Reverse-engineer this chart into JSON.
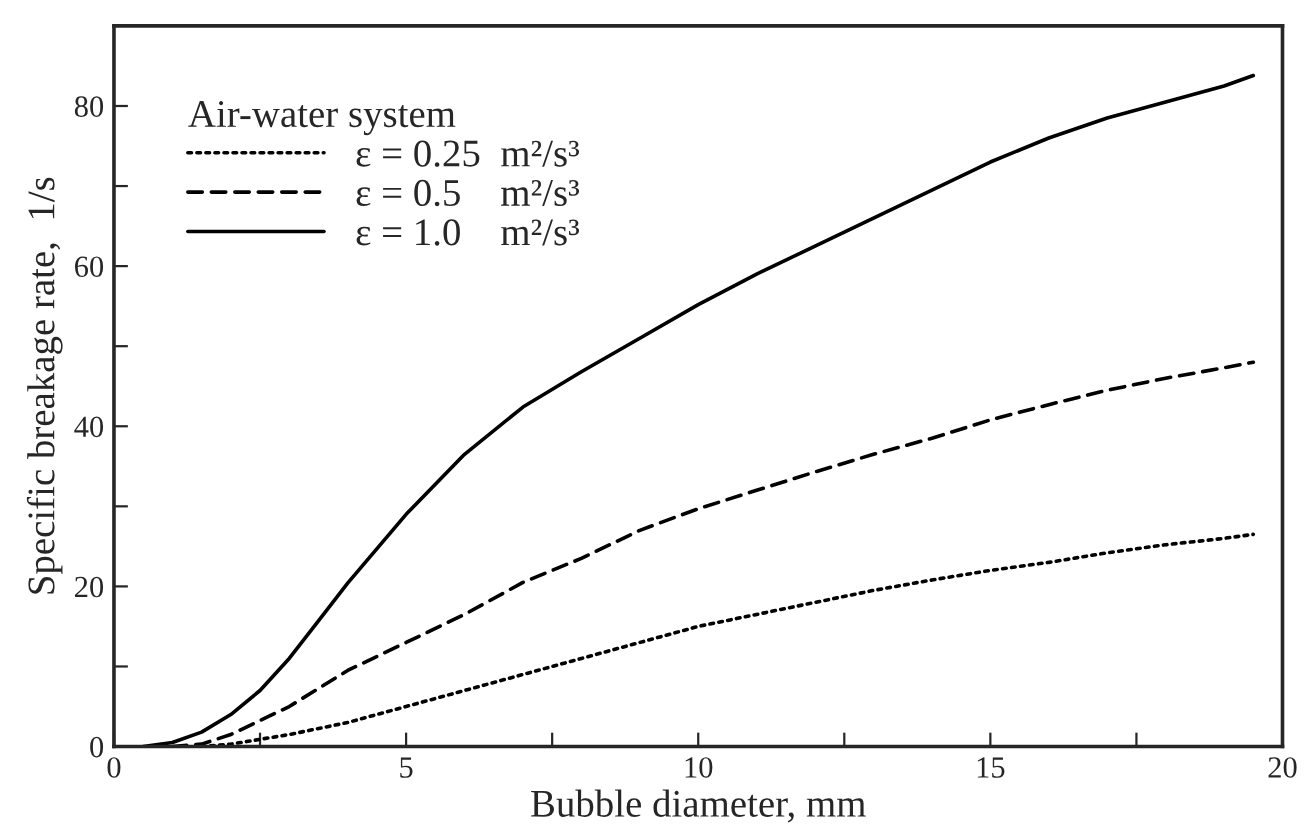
{
  "chart_data": {
    "type": "line",
    "xlabel": "Bubble diameter, mm",
    "ylabel": "Specific breakage rate,  1/s",
    "legend_title": "Air-water system",
    "legend": "top left",
    "xlim": [
      0,
      20
    ],
    "xticks": [
      0,
      {
        "value": 2.5,
        "label": null
      },
      5,
      {
        "value": 7.5,
        "label": null
      },
      10,
      {
        "value": 12.5,
        "label": null
      },
      15,
      {
        "value": 17.5,
        "label": null
      },
      20
    ],
    "ylim": [
      0,
      90
    ],
    "yticks": [
      0,
      {
        "value": 10,
        "label": null
      },
      20,
      {
        "value": 30,
        "label": null
      },
      40,
      {
        "value": 50,
        "label": null
      },
      60,
      {
        "value": 70,
        "label": null
      },
      80
    ],
    "grid": false,
    "series": [
      {
        "name": "ε = 0.25  m²/s³",
        "color": "#000000",
        "line_style": "dotted",
        "x": [
          1.5,
          2,
          3,
          4,
          5,
          6,
          7,
          8,
          9,
          10,
          11,
          12,
          13,
          14,
          15,
          16,
          17,
          18,
          19,
          19.5
        ],
        "values": [
          0,
          0.3,
          1.5,
          3,
          5,
          7,
          9,
          11,
          13,
          15,
          16.5,
          18,
          19.5,
          20.8,
          22,
          23,
          24.2,
          25.2,
          26,
          26.5
        ]
      },
      {
        "name": "ε = 0.5    m²/s³",
        "color": "#000000",
        "line_style": "dashed",
        "x": [
          1,
          1.5,
          2,
          3,
          4,
          5,
          6,
          7,
          8,
          9,
          10,
          11,
          12,
          13,
          14,
          15,
          16,
          17,
          18,
          19,
          19.5
        ],
        "values": [
          0,
          0.3,
          1.5,
          5,
          9.5,
          13,
          16.5,
          20.5,
          23.5,
          27,
          29.7,
          32,
          34.3,
          36.5,
          38.5,
          40.8,
          42.7,
          44.5,
          46,
          47.3,
          48
        ]
      },
      {
        "name": "ε = 1.0    m²/s³",
        "color": "#000000",
        "line_style": "solid",
        "x": [
          0.5,
          1,
          1.5,
          2,
          2.5,
          3,
          3.5,
          4,
          5,
          6,
          7,
          8,
          9,
          10,
          11,
          12,
          13,
          14,
          15,
          16,
          17,
          18,
          19,
          19.5
        ],
        "values": [
          0,
          0.5,
          1.8,
          4,
          7,
          11,
          15.7,
          20.4,
          29,
          36.5,
          42.4,
          46.8,
          51,
          55.2,
          59,
          62.5,
          66,
          69.5,
          73,
          76,
          78.5,
          80.5,
          82.5,
          83.8
        ]
      }
    ]
  }
}
